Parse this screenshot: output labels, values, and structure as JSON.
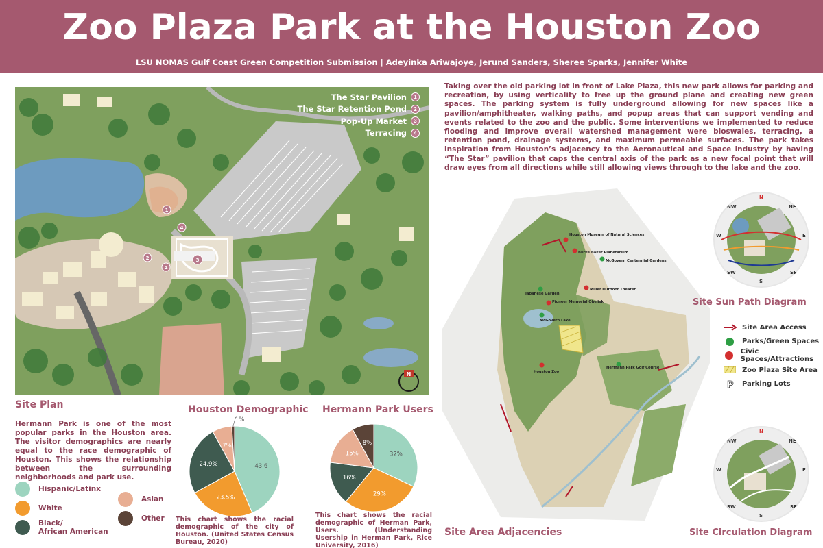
{
  "header": {
    "title": "Zoo Plaza Park at the Houston Zoo",
    "subtitle": "LSU NOMAS Gulf Coast Green Competition Submission | Adeyinka Ariwajoye, Jerund Sanders, Sheree Sparks, Jennifer White"
  },
  "site_plan": {
    "heading": "Site Plan",
    "legend": [
      {
        "label": "The Star Pavilion",
        "num": "1"
      },
      {
        "label": "The Star Retention Pond",
        "num": "2"
      },
      {
        "label": "Pop-Up Market",
        "num": "3"
      },
      {
        "label": "Terracing",
        "num": "4"
      }
    ],
    "markers": [
      "1",
      "2",
      "3",
      "4",
      "4"
    ],
    "north": "N",
    "description": "Hermann Park is one of the most popular parks in the Houston area. The visitor demographics are nearly equal to the race demographic of Houston. This shows the relationship between the surrounding neighborhoods and park use."
  },
  "intro_text": "Taking over the old parking lot in front of Lake Plaza, this new park allows for parking and recreation, by using verticality to free up the ground plane and creating new green spaces. The parking system is fully underground allowing for new spaces like a pavilion/amphitheater, walking paths, and popup areas that can support vending and events related to the zoo and the public. Some interventions we implemented to reduce flooding and improve overall watershed management were bioswales, terracing, a retention pond, drainage systems, and maximum permeable surfaces. The park takes inspiration from Houston’s adjacency to the Aeronautical and Space industry by having “The Star” pavilion that caps the central axis of the park as a new focal point that will draw eyes from all directions while still allowing views through to the lake and the zoo.",
  "pie_key": [
    {
      "label": "Hispanic/Latinx",
      "color": "#9dd4bf"
    },
    {
      "label": "White",
      "color": "#f29b2e"
    },
    {
      "label": "Black/\nAfrican American",
      "color": "#3f5b50"
    },
    {
      "label": "Asian",
      "color": "#e8ae93"
    },
    {
      "label": "Other",
      "color": "#5b4438"
    }
  ],
  "chart_data": [
    {
      "type": "pie",
      "title": "Houston Demographic",
      "labels": [
        "Hispanic/Latinx",
        "White",
        "Black/African American",
        "Asian",
        "Other"
      ],
      "values": [
        43.6,
        23.5,
        24.9,
        7,
        1
      ],
      "value_labels": [
        "43.6",
        "23.5%",
        "24.9%",
        "7%",
        "1%"
      ],
      "caption": "This chart shows the racial demographic of the city of Houston. (United States Census Bureau, 2020)"
    },
    {
      "type": "pie",
      "title": "Hermann Park Users",
      "labels": [
        "Hispanic/Latinx",
        "White",
        "Black/African American",
        "Asian",
        "Other"
      ],
      "values": [
        32,
        29,
        16,
        15,
        8
      ],
      "value_labels": [
        "32%",
        "29%",
        "16%",
        "15%",
        "8%"
      ],
      "caption": "This chart shows the racial demographic of Herman Park, Users. (Understanding Usership in Herman Park, Rice University, 2016)"
    }
  ],
  "adjacency": {
    "heading": "Site Area Adjacencies",
    "map_labels": [
      "Houston Museum of Natural Sciences",
      "Burke Baker Planetarium",
      "McGovern Centennial Gardens",
      "Miller Outdoor Theater",
      "Japanese Garden",
      "Pioneer Memorial Obelisk",
      "McGovern Lake",
      "Houston Zoo",
      "Hermann Park Golf Course"
    ],
    "legend": [
      {
        "label": "Site Area Access",
        "icon": "arrow-icon"
      },
      {
        "label": "Parks/Green Spaces",
        "icon": "green-dot-icon"
      },
      {
        "label": "Civic Spaces/Attractions",
        "icon": "red-dot-icon"
      },
      {
        "label": "Zoo Plaza Site Area",
        "icon": "hatch-icon"
      },
      {
        "label": "Parking Lots",
        "icon": "parking-icon"
      }
    ]
  },
  "sun_path": {
    "heading": "Site Sun Path Diagram",
    "compass": {
      "n": "N",
      "ne": "NE",
      "e": "E",
      "se": "SE",
      "s": "S",
      "sw": "SW",
      "w": "W",
      "nw": "NW"
    }
  },
  "circulation": {
    "heading": "Site Circulation Diagram",
    "compass": {
      "n": "N",
      "ne": "NE",
      "e": "E",
      "se": "SE",
      "s": "S",
      "sw": "SW",
      "w": "W",
      "nw": "NW"
    }
  },
  "colors": {
    "banner": "#a5596f",
    "accent_text": "#8a3f55",
    "heading": "#a5596f",
    "grass": "#7c9a5c",
    "water": "#6d9bbf"
  }
}
